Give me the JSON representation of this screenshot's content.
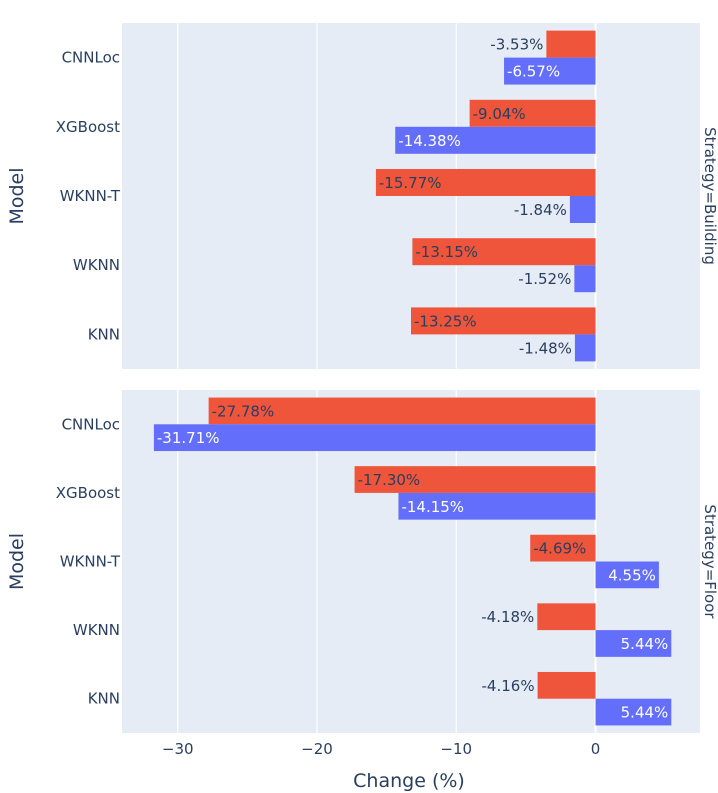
{
  "chart_data": {
    "type": "bar",
    "orientation": "horizontal",
    "barmode": "group",
    "xlabel": "Change (%)",
    "ylabel": "Model",
    "x_range": [
      -34,
      7.5
    ],
    "x_ticks": [
      -30,
      -20,
      -10,
      0
    ],
    "x_tick_labels": [
      "−30",
      "−20",
      "−10",
      "0"
    ],
    "categories": [
      "CNNLoc",
      "XGBoost",
      "WKNN-T",
      "WKNN",
      "KNN"
    ],
    "series_colors": [
      "#EF553B",
      "#636EFA"
    ],
    "facets": [
      {
        "label": "Strategy=Building",
        "series": [
          {
            "values": [
              -3.53,
              -9.04,
              -15.77,
              -13.15,
              -13.25
            ],
            "labels": [
              "-3.53%",
              "-9.04%",
              "-15.77%",
              "-13.15%",
              "-13.25%"
            ]
          },
          {
            "values": [
              -6.57,
              -14.38,
              -1.84,
              -1.52,
              -1.48
            ],
            "labels": [
              "-6.57%",
              "-14.38%",
              "-1.84%",
              "-1.52%",
              "-1.48%"
            ]
          }
        ]
      },
      {
        "label": "Strategy=Floor",
        "series": [
          {
            "values": [
              -27.78,
              -17.3,
              -4.69,
              -4.18,
              -4.16
            ],
            "labels": [
              "-27.78%",
              "-17.30%",
              "-4.69%",
              "-4.18%",
              "-4.16%"
            ]
          },
          {
            "values": [
              -31.71,
              -14.15,
              4.55,
              5.44,
              5.44
            ],
            "labels": [
              "-31.71%",
              "-14.15%",
              "4.55%",
              "5.44%",
              "5.44%"
            ]
          }
        ]
      }
    ]
  }
}
